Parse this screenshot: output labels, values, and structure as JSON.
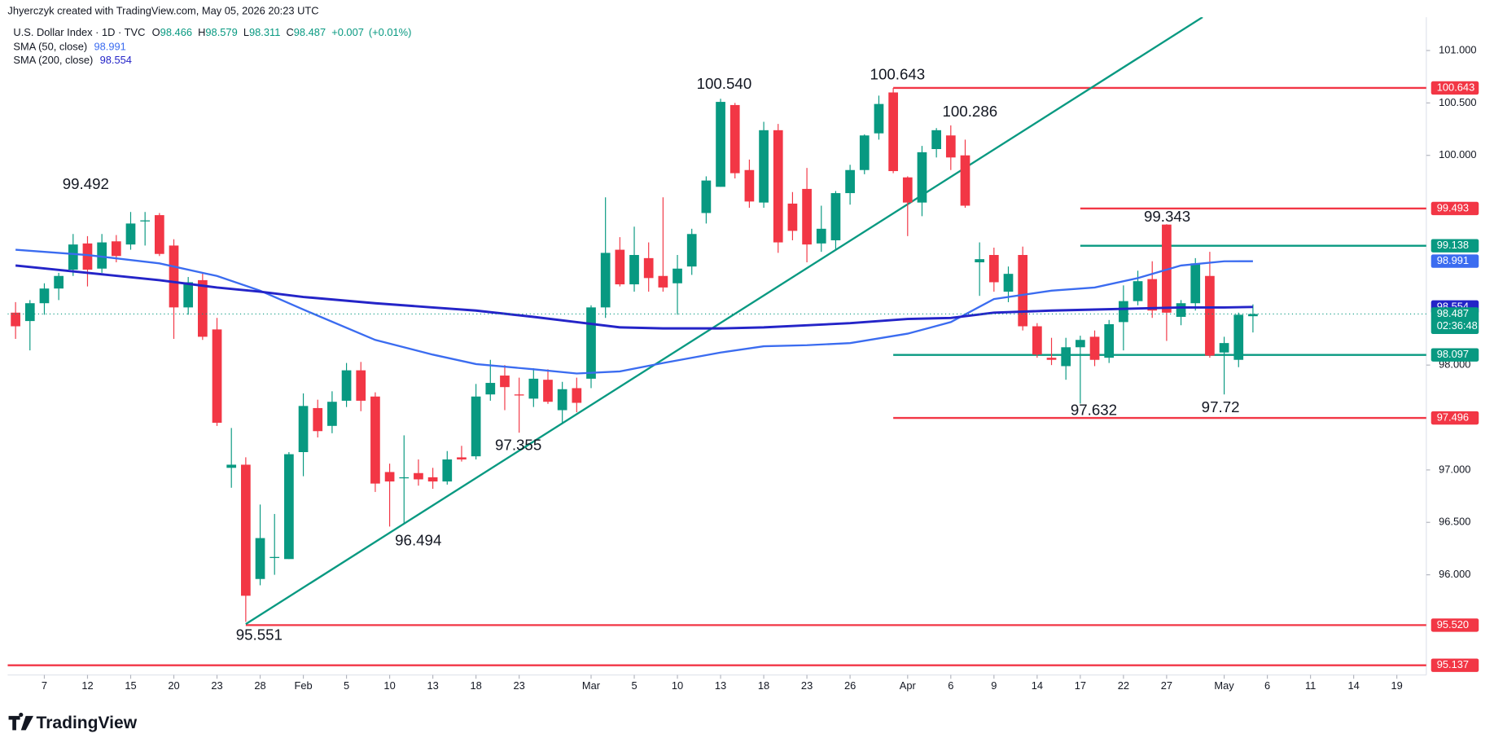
{
  "credit": "Jhyerczyk created with TradingView.com, May 05, 2026 20:23 UTC",
  "logo_text": "TradingView",
  "chart_data": {
    "type": "candlestick",
    "title": "U.S. Dollar Index · 1D · TVC",
    "ohlc_labels": [
      "O",
      "H",
      "L",
      "C"
    ],
    "change": "+0.007",
    "change_pct": "(+0.01%)",
    "countdown": "02:36:48",
    "up_color": "#089981",
    "down_color": "#f23645",
    "open": [
      98.5,
      98.42,
      98.59,
      98.73,
      98.91,
      99.16,
      98.92,
      99.18,
      99.15,
      99.37,
      99.43,
      99.14,
      98.55,
      98.81,
      98.34,
      97.02,
      97.05,
      95.96,
      96.16,
      96.15,
      97.17,
      97.59,
      97.42,
      97.66,
      97.95,
      97.7,
      96.98,
      96.92,
      96.97,
      96.93,
      96.89,
      97.12,
      97.13,
      97.72,
      97.9,
      97.72,
      97.68,
      97.86,
      97.57,
      97.78,
      97.87,
      98.55,
      99.1,
      98.77,
      99.02,
      98.85,
      98.78,
      98.94,
      99.45,
      99.7,
      100.48,
      99.86,
      99.55,
      100.24,
      99.54,
      99.68,
      99.16,
      99.19,
      99.64,
      99.86,
      100.21,
      100.6,
      99.79,
      99.55,
      100.06,
      100.19,
      100.0,
      98.98,
      99.05,
      98.7,
      99.05,
      98.37,
      98.07,
      97.99,
      98.17,
      98.27,
      98.07,
      98.41,
      98.61,
      98.82,
      99.34,
      98.46,
      98.59,
      98.85,
      98.12,
      98.05,
      98.466
    ],
    "high": [
      98.6,
      98.62,
      98.78,
      98.88,
      99.25,
      99.23,
      99.25,
      99.24,
      99.46,
      99.46,
      99.45,
      99.2,
      98.84,
      98.88,
      98.45,
      97.4,
      97.12,
      96.67,
      96.58,
      97.17,
      97.73,
      97.67,
      97.75,
      98.02,
      98.03,
      97.74,
      97.06,
      97.33,
      97.1,
      97.02,
      97.18,
      97.23,
      97.82,
      98.05,
      98.0,
      97.88,
      97.97,
      97.96,
      97.84,
      97.88,
      98.57,
      99.6,
      99.22,
      99.32,
      99.17,
      99.6,
      99.05,
      99.3,
      99.8,
      100.54,
      100.5,
      99.96,
      100.32,
      100.3,
      99.65,
      99.88,
      99.52,
      99.66,
      99.91,
      100.2,
      100.57,
      100.643,
      99.8,
      100.09,
      100.26,
      100.286,
      100.15,
      99.17,
      99.12,
      98.94,
      99.13,
      98.4,
      98.26,
      98.26,
      98.28,
      98.33,
      98.43,
      98.76,
      98.9,
      98.99,
      99.343,
      98.62,
      99.02,
      99.08,
      98.27,
      98.5,
      98.579
    ],
    "low": [
      98.25,
      98.14,
      98.48,
      98.62,
      98.85,
      98.75,
      98.88,
      98.98,
      99.1,
      99.14,
      99.04,
      98.25,
      98.48,
      98.24,
      97.42,
      96.83,
      95.551,
      95.9,
      96.0,
      96.15,
      96.94,
      97.31,
      97.35,
      97.6,
      97.56,
      96.79,
      96.46,
      96.494,
      96.85,
      96.82,
      96.86,
      97.08,
      97.1,
      97.66,
      97.57,
      97.355,
      97.6,
      97.63,
      97.45,
      97.55,
      97.78,
      98.45,
      98.75,
      98.7,
      98.7,
      98.7,
      98.48,
      98.86,
      99.35,
      99.7,
      99.78,
      99.5,
      99.5,
      99.07,
      99.19,
      98.98,
      99.08,
      99.1,
      99.53,
      99.82,
      100.15,
      99.83,
      99.23,
      99.42,
      99.98,
      99.86,
      99.5,
      98.66,
      98.7,
      98.6,
      98.33,
      98.07,
      98.0,
      97.86,
      97.632,
      97.99,
      98.02,
      98.14,
      98.57,
      98.45,
      98.23,
      98.38,
      98.52,
      98.07,
      97.72,
      97.98,
      98.311
    ],
    "close": [
      98.37,
      98.59,
      98.73,
      98.85,
      99.15,
      98.91,
      99.17,
      99.04,
      99.35,
      99.38,
      99.06,
      98.55,
      98.79,
      98.27,
      97.45,
      97.05,
      95.8,
      96.35,
      96.17,
      97.15,
      97.61,
      97.37,
      97.65,
      97.95,
      97.66,
      96.87,
      96.89,
      96.93,
      96.91,
      96.89,
      97.1,
      97.1,
      97.7,
      97.83,
      97.79,
      97.71,
      97.87,
      97.65,
      97.77,
      97.64,
      98.55,
      99.07,
      98.77,
      99.05,
      98.83,
      98.74,
      98.92,
      99.25,
      99.76,
      100.51,
      99.83,
      99.56,
      100.24,
      99.17,
      99.28,
      99.15,
      99.3,
      99.64,
      99.86,
      100.19,
      100.49,
      99.85,
      99.55,
      100.03,
      100.24,
      99.98,
      99.52,
      99.01,
      98.79,
      98.87,
      98.37,
      98.1,
      98.05,
      98.17,
      98.24,
      98.05,
      98.39,
      98.61,
      98.8,
      98.52,
      98.5,
      98.59,
      98.97,
      98.09,
      98.21,
      98.48,
      98.487
    ],
    "series": [
      {
        "name": "SMA (50, close)",
        "color": "#3b6cf0",
        "x": [
          0,
          5,
          10,
          14,
          17,
          20,
          25,
          29,
          32,
          36,
          39,
          42,
          45,
          49,
          52,
          55,
          58,
          62,
          65,
          68,
          72,
          75,
          78,
          81,
          84,
          86
        ],
        "values": [
          99.1,
          99.05,
          98.97,
          98.85,
          98.71,
          98.53,
          98.24,
          98.1,
          98.01,
          97.96,
          97.92,
          97.94,
          98.02,
          98.12,
          98.18,
          98.19,
          98.21,
          98.3,
          98.41,
          98.63,
          98.71,
          98.74,
          98.83,
          98.95,
          98.99,
          98.991
        ]
      },
      {
        "name": "SMA (200, close)",
        "color": "#2424c8",
        "x": [
          0,
          5,
          10,
          14,
          17,
          20,
          25,
          29,
          32,
          36,
          39,
          42,
          45,
          49,
          52,
          55,
          58,
          62,
          65,
          68,
          72,
          75,
          78,
          81,
          84,
          86
        ],
        "values": [
          98.95,
          98.88,
          98.81,
          98.74,
          98.7,
          98.65,
          98.59,
          98.55,
          98.52,
          98.46,
          98.41,
          98.36,
          98.35,
          98.35,
          98.36,
          98.38,
          98.4,
          98.44,
          98.45,
          98.5,
          98.52,
          98.53,
          98.54,
          98.55,
          98.55,
          98.554
        ]
      }
    ],
    "levels": [
      {
        "price": 100.643,
        "color": "#f23645",
        "from": 61
      },
      {
        "price": 99.493,
        "color": "#f23645",
        "from": 74
      },
      {
        "price": 99.138,
        "color": "#089981",
        "from": 74
      },
      {
        "price": 98.097,
        "color": "#089981",
        "from": 61
      },
      {
        "price": 97.496,
        "color": "#f23645",
        "from": 61
      },
      {
        "price": 95.52,
        "label": "95.520",
        "color": "#f23645",
        "from": 16
      },
      {
        "price": 95.137,
        "color": "#f23645",
        "from": -0.55
      }
    ],
    "trendlines": [
      {
        "color": "#089981",
        "points": [
          [
            16,
            95.53
          ],
          [
            82.5,
            101.318
          ]
        ]
      }
    ],
    "annotations": [
      "99.492",
      "100.540",
      "100.643",
      "100.286",
      "99.343",
      "97.355",
      "96.494",
      "95.551",
      "97.632",
      "97.72"
    ],
    "xlim": [
      -0.55,
      98.05
    ],
    "ylim": [
      95.045,
      101.318
    ],
    "yticks": [
      {
        "value": 101,
        "label": "101.000"
      },
      {
        "value": 100.5,
        "label": "100.500"
      },
      {
        "value": 100,
        "label": "100.000"
      },
      {
        "value": 98,
        "label": "98.000"
      },
      {
        "value": 97,
        "label": "97.000"
      },
      {
        "value": 96.5,
        "label": "96.500"
      },
      {
        "value": 96,
        "label": "96.000"
      }
    ],
    "xticks": [
      {
        "value": 2,
        "label": "7"
      },
      {
        "value": 5,
        "label": "12"
      },
      {
        "value": 8,
        "label": "15"
      },
      {
        "value": 11,
        "label": "20"
      },
      {
        "value": 14,
        "label": "23"
      },
      {
        "value": 17,
        "label": "28"
      },
      {
        "value": 20,
        "label": "Feb"
      },
      {
        "value": 23,
        "label": "5"
      },
      {
        "value": 26,
        "label": "10"
      },
      {
        "value": 29,
        "label": "13"
      },
      {
        "value": 32,
        "label": "18"
      },
      {
        "value": 35,
        "label": "23"
      },
      {
        "value": 40,
        "label": "Mar"
      },
      {
        "value": 43,
        "label": "5"
      },
      {
        "value": 46,
        "label": "10"
      },
      {
        "value": 49,
        "label": "13"
      },
      {
        "value": 52,
        "label": "18"
      },
      {
        "value": 55,
        "label": "23"
      },
      {
        "value": 58,
        "label": "26"
      },
      {
        "value": 62,
        "label": "Apr"
      },
      {
        "value": 65,
        "label": "6"
      },
      {
        "value": 68,
        "label": "9"
      },
      {
        "value": 71,
        "label": "14"
      },
      {
        "value": 74,
        "label": "17"
      },
      {
        "value": 77,
        "label": "22"
      },
      {
        "value": 80,
        "label": "27"
      },
      {
        "value": 84,
        "label": "May"
      },
      {
        "value": 87,
        "label": "6"
      },
      {
        "value": 90,
        "label": "11"
      },
      {
        "value": 93,
        "label": "14"
      },
      {
        "value": 96,
        "label": "19"
      }
    ]
  }
}
